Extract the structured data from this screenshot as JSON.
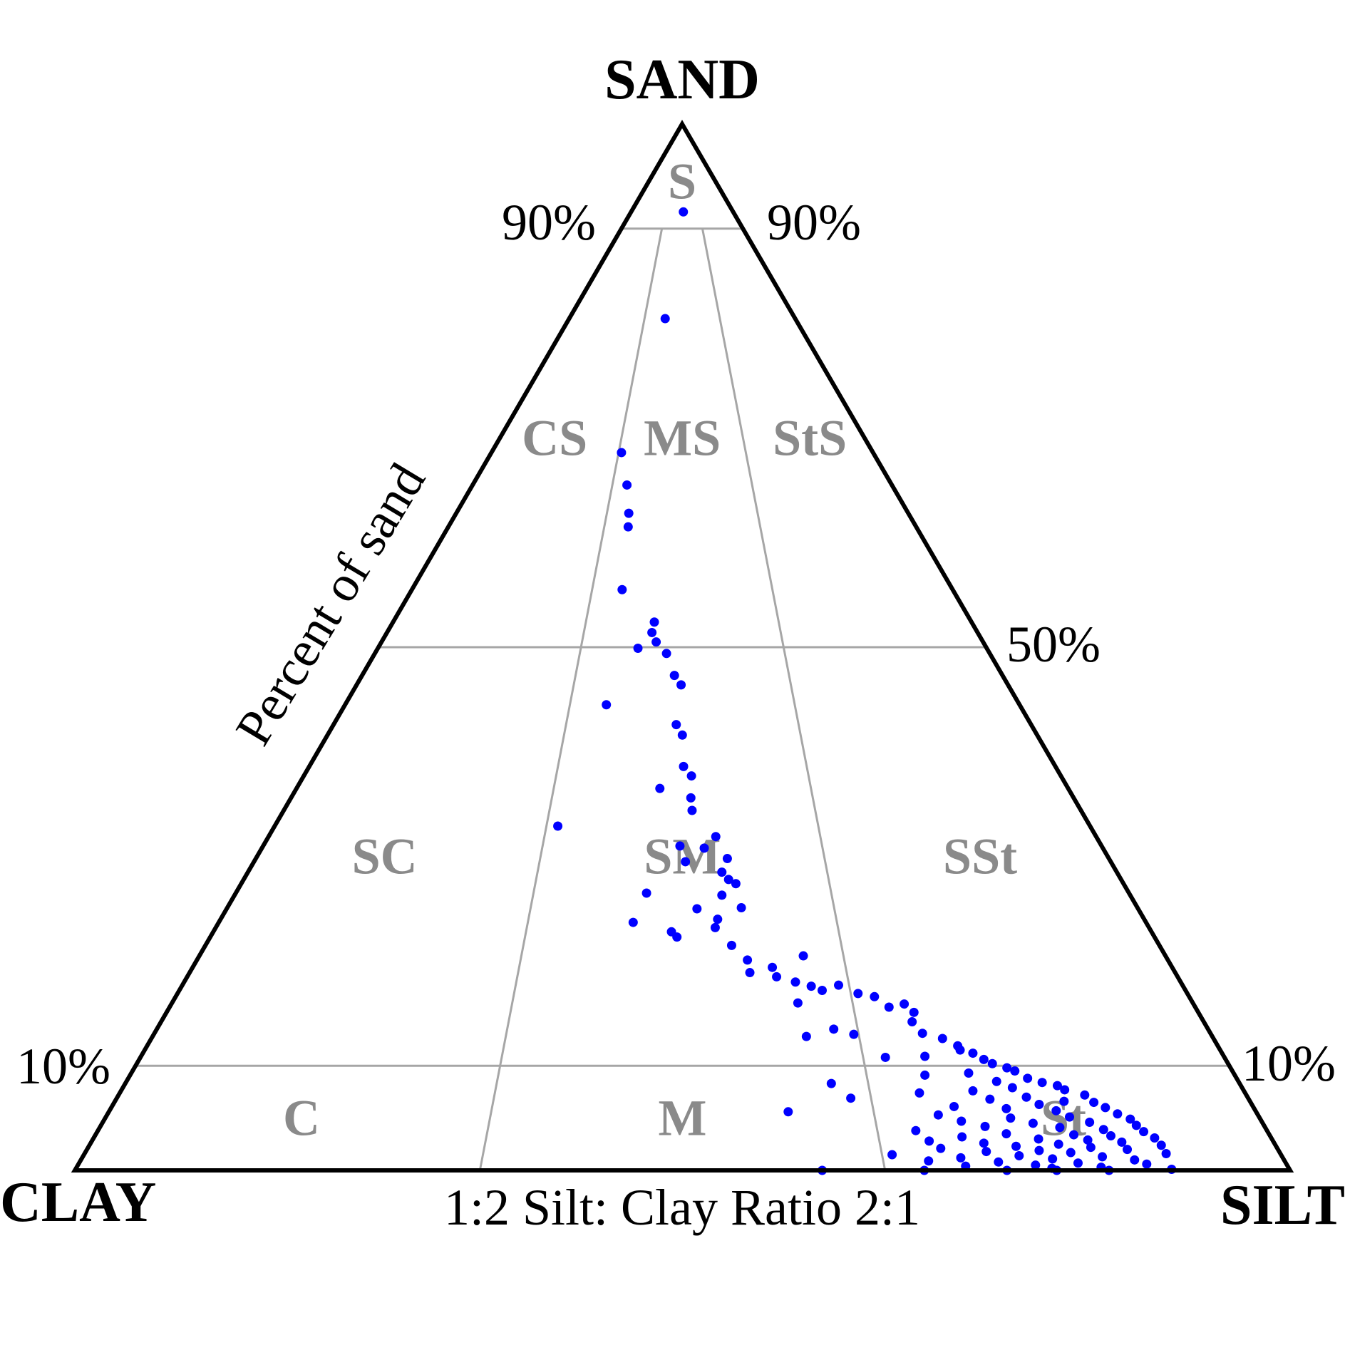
{
  "chart_data": {
    "type": "scatter",
    "subtype": "ternary",
    "vertices": {
      "top": "SAND",
      "left": "CLAY",
      "right": "SILT"
    },
    "axis_title": "Percent of sand",
    "bottom_label": "1:2 Silt: Clay Ratio 2:1",
    "tick_labels": {
      "sand_90_left": "90%",
      "sand_90_right": "90%",
      "sand_50": "50%",
      "sand_10_left": "10%",
      "sand_10_right": "10%"
    },
    "boundaries": {
      "sand_levels": [
        90,
        50,
        10
      ],
      "silt_clay_ratios": [
        0.3333,
        0.6667
      ]
    },
    "regions": [
      {
        "label": "S",
        "sand": 94.5,
        "silt_fraction": 0.5
      },
      {
        "label": "CS",
        "sand": 70,
        "silt_fraction": 0.15
      },
      {
        "label": "MS",
        "sand": 70,
        "silt_fraction": 0.5
      },
      {
        "label": "StS",
        "sand": 70,
        "silt_fraction": 0.85
      },
      {
        "label": "SC",
        "sand": 30,
        "silt_fraction": 0.15
      },
      {
        "label": "SM",
        "sand": 30,
        "silt_fraction": 0.5
      },
      {
        "label": "SSt",
        "sand": 30,
        "silt_fraction": 0.85
      },
      {
        "label": "C",
        "sand": 5,
        "silt_fraction": 0.17
      },
      {
        "label": "M",
        "sand": 5,
        "silt_fraction": 0.5
      },
      {
        "label": "St",
        "sand": 5,
        "silt_fraction": 0.83
      }
    ],
    "point_color": "#0000ff",
    "points_columns": [
      "sand",
      "silt",
      "clay"
    ],
    "points": [
      [
        91.6,
        4.3,
        4.1
      ],
      [
        81.4,
        7.9,
        10.7
      ],
      [
        68.6,
        10.7,
        20.7
      ],
      [
        65.5,
        12.7,
        21.8
      ],
      [
        62.8,
        14.2,
        23.0
      ],
      [
        61.5,
        14.8,
        23.7
      ],
      [
        55.5,
        17.3,
        27.2
      ],
      [
        52.4,
        21.5,
        26.1
      ],
      [
        51.4,
        21.8,
        26.8
      ],
      [
        50.5,
        22.6,
        26.9
      ],
      [
        49.9,
        21.4,
        28.7
      ],
      [
        49.4,
        24.0,
        26.6
      ],
      [
        47.3,
        25.7,
        27.0
      ],
      [
        46.4,
        26.7,
        26.9
      ],
      [
        44.5,
        21.5,
        34.0
      ],
      [
        42.6,
        28.2,
        29.2
      ],
      [
        41.6,
        29.2,
        29.2
      ],
      [
        38.6,
        30.8,
        30.6
      ],
      [
        37.7,
        31.9,
        30.4
      ],
      [
        36.5,
        29.9,
        33.6
      ],
      [
        35.6,
        32.9,
        31.5
      ],
      [
        34.4,
        33.6,
        32.0
      ],
      [
        32.9,
        23.3,
        43.8
      ],
      [
        31.9,
        36.8,
        31.3
      ],
      [
        31.0,
        34.3,
        34.7
      ],
      [
        30.8,
        36.4,
        32.8
      ],
      [
        29.8,
        38.8,
        31.4
      ],
      [
        29.5,
        35.5,
        35.0
      ],
      [
        28.5,
        39.0,
        32.5
      ],
      [
        27.8,
        39.9,
        32.3
      ],
      [
        27.4,
        40.7,
        31.9
      ],
      [
        26.5,
        33.8,
        39.7
      ],
      [
        26.3,
        40.1,
        33.6
      ],
      [
        25.1,
        42.3,
        32.6
      ],
      [
        25.0,
        38.7,
        36.3
      ],
      [
        24.0,
        40.9,
        35.1
      ],
      [
        23.7,
        34.1,
        42.2
      ],
      [
        23.2,
        41.1,
        35.7
      ],
      [
        22.8,
        37.7,
        39.5
      ],
      [
        22.3,
        38.4,
        39.3
      ],
      [
        21.5,
        43.3,
        35.2
      ],
      [
        20.5,
        49.7,
        29.8
      ],
      [
        20.1,
        45.3,
        34.6
      ],
      [
        19.4,
        47.7,
        32.9
      ],
      [
        18.9,
        46.1,
        35.0
      ],
      [
        18.5,
        48.5,
        33.0
      ],
      [
        18.0,
        50.3,
        31.7
      ],
      [
        17.6,
        51.8,
        30.6
      ],
      [
        17.2,
        52.9,
        29.9
      ],
      [
        17.7,
        54.0,
        28.3
      ],
      [
        16.9,
        56.0,
        27.1
      ],
      [
        16.6,
        57.5,
        25.9
      ],
      [
        16.0,
        51.5,
        32.5
      ],
      [
        15.6,
        59.2,
        25.2
      ],
      [
        15.9,
        60.3,
        23.8
      ],
      [
        15.1,
        61.5,
        23.4
      ],
      [
        14.2,
        61.8,
        24.0
      ],
      [
        13.5,
        55.7,
        30.8
      ],
      [
        13.1,
        63.2,
        23.7
      ],
      [
        13.0,
        57.6,
        29.4
      ],
      [
        12.8,
        53.8,
        33.4
      ],
      [
        12.6,
        65.1,
        22.3
      ],
      [
        11.9,
        66.7,
        21.4
      ],
      [
        11.5,
        67.1,
        21.4
      ],
      [
        11.2,
        68.3,
        20.5
      ],
      [
        10.8,
        61.3,
        27.9
      ],
      [
        10.9,
        64.5,
        24.6
      ],
      [
        10.6,
        69.5,
        19.9
      ],
      [
        10.2,
        70.4,
        19.4
      ],
      [
        9.8,
        71.8,
        18.4
      ],
      [
        9.5,
        72.6,
        17.9
      ],
      [
        9.3,
        68.9,
        21.8
      ],
      [
        9.1,
        65.4,
        25.5
      ],
      [
        8.8,
        74.0,
        17.2
      ],
      [
        8.5,
        71.6,
        19.9
      ],
      [
        8.4,
        75.4,
        16.2
      ],
      [
        8.3,
        58.1,
        33.6
      ],
      [
        8.1,
        76.8,
        15.1
      ],
      [
        7.9,
        73.2,
        18.9
      ],
      [
        7.7,
        77.6,
        14.7
      ],
      [
        7.6,
        70.1,
        22.3
      ],
      [
        7.4,
        65.8,
        26.8
      ],
      [
        7.2,
        79.5,
        13.3
      ],
      [
        7.0,
        74.8,
        18.2
      ],
      [
        6.9,
        60.4,
        32.7
      ],
      [
        6.8,
        71.9,
        21.3
      ],
      [
        6.6,
        78.1,
        15.3
      ],
      [
        6.5,
        80.6,
        12.9
      ],
      [
        6.3,
        76.2,
        17.5
      ],
      [
        6.1,
        69.3,
        24.6
      ],
      [
        6.0,
        81.8,
        12.2
      ],
      [
        5.9,
        73.7,
        20.4
      ],
      [
        5.7,
        77.9,
        16.4
      ],
      [
        5.6,
        55.9,
        38.5
      ],
      [
        5.4,
        83.1,
        11.5
      ],
      [
        5.3,
        68.4,
        26.3
      ],
      [
        5.1,
        79.3,
        15.6
      ],
      [
        5.0,
        74.5,
        20.5
      ],
      [
        4.9,
        84.4,
        10.7
      ],
      [
        4.7,
        70.6,
        24.7
      ],
      [
        4.6,
        81.2,
        14.2
      ],
      [
        4.5,
        76.6,
        18.9
      ],
      [
        4.3,
        85.2,
        10.5
      ],
      [
        4.2,
        72.8,
        23.0
      ],
      [
        4.1,
        79.0,
        16.9
      ],
      [
        3.9,
        82.7,
        13.4
      ],
      [
        3.8,
        67.3,
        28.9
      ],
      [
        3.7,
        86.1,
        10.2
      ],
      [
        3.5,
        74.9,
        21.6
      ],
      [
        3.4,
        80.5,
        16.1
      ],
      [
        3.3,
        83.6,
        13.1
      ],
      [
        3.2,
        71.4,
        25.4
      ],
      [
        3.1,
        87.3,
        9.6
      ],
      [
        3.0,
        77.8,
        19.2
      ],
      [
        2.9,
        81.9,
        15.2
      ],
      [
        2.8,
        68.9,
        28.3
      ],
      [
        2.7,
        84.8,
        12.5
      ],
      [
        2.6,
        73.5,
        23.9
      ],
      [
        2.5,
        79.7,
        17.8
      ],
      [
        2.4,
        88.2,
        9.4
      ],
      [
        2.3,
        76.3,
        21.4
      ],
      [
        2.2,
        82.5,
        15.3
      ],
      [
        2.1,
        70.2,
        27.7
      ],
      [
        2.0,
        85.6,
        12.4
      ],
      [
        1.9,
        78.4,
        19.7
      ],
      [
        1.8,
        74.1,
        24.1
      ],
      [
        1.7,
        81.1,
        17.2
      ],
      [
        1.6,
        89.0,
        9.4
      ],
      [
        1.5,
        66.5,
        32.0
      ],
      [
        1.4,
        77.0,
        21.6
      ],
      [
        1.3,
        83.9,
        14.8
      ],
      [
        1.2,
        72.3,
        26.5
      ],
      [
        1.1,
        79.9,
        19.0
      ],
      [
        1.0,
        86.7,
        12.3
      ],
      [
        0.9,
        69.8,
        29.3
      ],
      [
        0.8,
        75.6,
        23.6
      ],
      [
        0.7,
        82.2,
        17.1
      ],
      [
        0.6,
        87.9,
        11.5
      ],
      [
        0.5,
        78.8,
        20.7
      ],
      [
        0.4,
        73.1,
        26.5
      ],
      [
        0.3,
        84.3,
        15.4
      ],
      [
        0.2,
        80.3,
        19.5
      ],
      [
        0.1,
        90.2,
        9.7
      ],
      [
        0.0,
        85.1,
        14.9
      ],
      [
        0.0,
        69.9,
        30.1
      ],
      [
        0.0,
        76.7,
        23.3
      ],
      [
        0.0,
        61.5,
        38.5
      ],
      [
        0.0,
        80.8,
        19.2
      ]
    ]
  }
}
